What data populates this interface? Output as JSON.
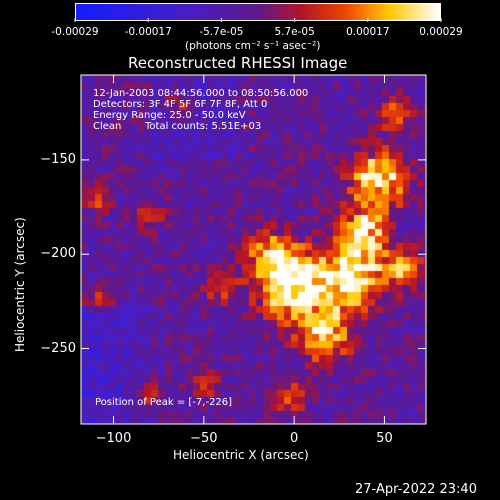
{
  "colorbar": {
    "ticks": [
      "-0.00029",
      "-0.00017",
      "-5.7e-05",
      "5.7e-05",
      "0.00017",
      "0.00029"
    ],
    "unit_label": "(photons cm⁻² s⁻¹ asec⁻²)"
  },
  "chart_data": {
    "type": "heatmap",
    "title": "Reconstructed RHESSI Image",
    "xlabel": "Heliocentric X (arcsec)",
    "ylabel": "Heliocentric Y (arcsec)",
    "xlim": [
      -118,
      73
    ],
    "ylim": [
      -290,
      -105
    ],
    "xticks": [
      "-100",
      "-50",
      "0",
      "50"
    ],
    "yticks": [
      "-150",
      "-200",
      "-250"
    ],
    "colormap": "blue-purple-red-yellow-white (RHESSI flux)",
    "value_range": [
      -0.00029,
      0.00029
    ],
    "peak": [
      -7,
      -226
    ],
    "annotations": {
      "time_range": "12-Jan-2003 08:44:56.000 to 08:50:56.000",
      "detectors": "Detectors: 3F 4F 5F 6F 7F 8F, Att 0",
      "energy": "Energy Range: 25.0 - 50.0 keV",
      "algorithm": "Clean",
      "counts": "Total counts: 5.51E+03",
      "peak_text": "Position of Peak = [-7,-226]"
    }
  },
  "footer": {
    "timestamp": "27-Apr-2022 23:40"
  }
}
